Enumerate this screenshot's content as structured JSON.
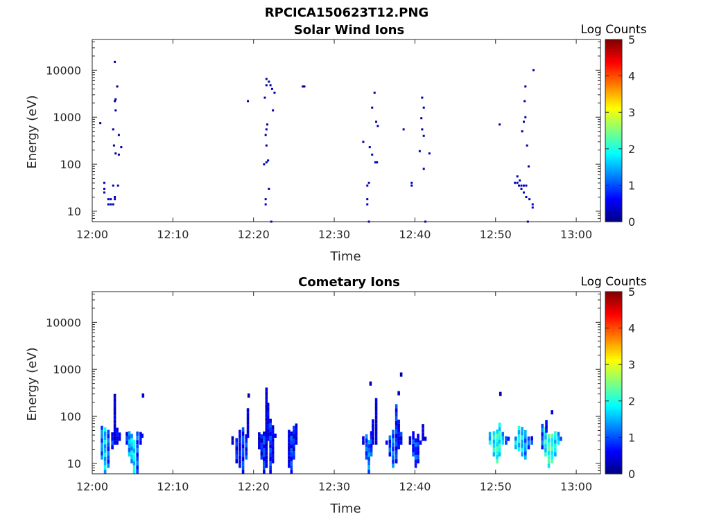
{
  "figure_title": "RPCICA150623T12.PNG",
  "chart_data": [
    {
      "type": "heatmap",
      "title": "Solar Wind Ions",
      "xlabel": "Time",
      "ylabel": "Energy (eV)",
      "x_range_minutes": [
        0,
        63
      ],
      "x_ticks": [
        {
          "minute": 0,
          "label": "12:00"
        },
        {
          "minute": 10,
          "label": "12:10"
        },
        {
          "minute": 20,
          "label": "12:20"
        },
        {
          "minute": 30,
          "label": "12:30"
        },
        {
          "minute": 40,
          "label": "12:40"
        },
        {
          "minute": 50,
          "label": "12:50"
        },
        {
          "minute": 60,
          "label": "13:00"
        }
      ],
      "y_scale": "log",
      "y_range": [
        6,
        45000
      ],
      "y_ticks": [
        {
          "value": 10,
          "label": "10"
        },
        {
          "value": 100,
          "label": "100"
        },
        {
          "value": 1000,
          "label": "1000"
        },
        {
          "value": 10000,
          "label": "10000"
        }
      ],
      "colorbar": {
        "title": "Log Counts",
        "min": 0,
        "max": 5,
        "ticks": [
          "0",
          "1",
          "2",
          "3",
          "4",
          "5"
        ],
        "colormap": "jet"
      },
      "cells": [
        [
          1.0,
          750,
          0.1
        ],
        [
          1.5,
          40,
          0.2
        ],
        [
          1.5,
          30,
          0.2
        ],
        [
          1.5,
          25,
          0.2
        ],
        [
          2.0,
          18,
          0.3
        ],
        [
          2.0,
          14,
          0.3
        ],
        [
          2.3,
          14,
          0.3
        ],
        [
          2.3,
          18,
          0.3
        ],
        [
          2.6,
          35,
          0.3
        ],
        [
          2.6,
          14,
          0.3
        ],
        [
          2.8,
          18,
          0.3
        ],
        [
          2.8,
          20,
          0.3
        ],
        [
          2.6,
          550,
          0.2
        ],
        [
          2.7,
          250,
          0.2
        ],
        [
          2.9,
          170,
          0.2
        ],
        [
          2.8,
          2200,
          0.2
        ],
        [
          2.9,
          2400,
          0.2
        ],
        [
          2.9,
          1400,
          0.2
        ],
        [
          2.8,
          15000,
          0.2
        ],
        [
          3.1,
          4500,
          0.2
        ],
        [
          3.2,
          35,
          0.3
        ],
        [
          3.3,
          420,
          0.2
        ],
        [
          3.3,
          160,
          0.2
        ],
        [
          3.6,
          230,
          0.2
        ],
        [
          19.3,
          2200,
          0.2
        ],
        [
          21.3,
          100,
          0.2
        ],
        [
          21.6,
          110,
          0.2
        ],
        [
          21.8,
          120,
          0.2
        ],
        [
          21.5,
          14,
          0.3
        ],
        [
          21.5,
          18,
          0.3
        ],
        [
          21.9,
          30,
          0.3
        ],
        [
          21.6,
          250,
          0.2
        ],
        [
          21.5,
          420,
          0.2
        ],
        [
          21.6,
          550,
          0.2
        ],
        [
          21.7,
          700,
          0.2
        ],
        [
          21.4,
          2600,
          0.2
        ],
        [
          21.6,
          4800,
          0.2
        ],
        [
          21.6,
          6500,
          0.2
        ],
        [
          21.9,
          5700,
          0.2
        ],
        [
          22.1,
          4800,
          0.2
        ],
        [
          22.3,
          4000,
          0.2
        ],
        [
          22.6,
          3300,
          0.2
        ],
        [
          22.4,
          1400,
          0.2
        ],
        [
          22.2,
          6,
          0.2
        ],
        [
          26.1,
          4500,
          0.2
        ],
        [
          26.3,
          4500,
          0.2
        ],
        [
          33.6,
          300,
          0.2
        ],
        [
          34.1,
          14,
          0.3
        ],
        [
          34.1,
          18,
          0.3
        ],
        [
          34.1,
          35,
          0.3
        ],
        [
          34.3,
          40,
          0.3
        ],
        [
          34.4,
          230,
          0.2
        ],
        [
          34.7,
          160,
          0.2
        ],
        [
          34.7,
          1600,
          0.2
        ],
        [
          35.0,
          3300,
          0.2
        ],
        [
          35.1,
          110,
          0.3
        ],
        [
          35.3,
          110,
          0.3
        ],
        [
          35.2,
          800,
          0.2
        ],
        [
          35.4,
          650,
          0.2
        ],
        [
          34.3,
          6,
          0.2
        ],
        [
          38.6,
          550,
          0.2
        ],
        [
          39.6,
          40,
          0.3
        ],
        [
          39.6,
          35,
          0.3
        ],
        [
          40.6,
          190,
          0.2
        ],
        [
          40.9,
          2600,
          0.2
        ],
        [
          41.1,
          1600,
          0.2
        ],
        [
          40.8,
          950,
          0.2
        ],
        [
          40.9,
          550,
          0.2
        ],
        [
          41.1,
          400,
          0.2
        ],
        [
          41.1,
          80,
          0.2
        ],
        [
          41.8,
          170,
          0.3
        ],
        [
          41.3,
          6,
          0.2
        ],
        [
          50.5,
          700,
          0.2
        ],
        [
          52.4,
          40,
          0.3
        ],
        [
          52.7,
          55,
          0.3
        ],
        [
          52.7,
          40,
          0.3
        ],
        [
          52.9,
          35,
          0.3
        ],
        [
          53.0,
          45,
          0.3
        ],
        [
          53.2,
          30,
          0.3
        ],
        [
          53.2,
          35,
          0.3
        ],
        [
          53.5,
          35,
          0.3
        ],
        [
          53.5,
          25,
          0.3
        ],
        [
          53.8,
          20,
          0.3
        ],
        [
          53.8,
          35,
          0.3
        ],
        [
          54.2,
          18,
          0.3
        ],
        [
          54.6,
          14,
          0.3
        ],
        [
          54.6,
          12,
          0.3
        ],
        [
          53.3,
          500,
          0.2
        ],
        [
          53.5,
          800,
          0.2
        ],
        [
          53.7,
          1000,
          0.2
        ],
        [
          53.6,
          2200,
          0.2
        ],
        [
          53.7,
          4500,
          0.2
        ],
        [
          53.9,
          250,
          0.2
        ],
        [
          54.1,
          90,
          0.2
        ],
        [
          54.7,
          10000,
          0.2
        ],
        [
          54.0,
          6,
          0.2
        ]
      ]
    },
    {
      "type": "heatmap",
      "title": "Cometary Ions",
      "xlabel": "Time",
      "ylabel": "Energy (eV)",
      "x_range_minutes": [
        0,
        63
      ],
      "x_ticks": [
        {
          "minute": 0,
          "label": "12:00"
        },
        {
          "minute": 10,
          "label": "12:10"
        },
        {
          "minute": 20,
          "label": "12:20"
        },
        {
          "minute": 30,
          "label": "12:30"
        },
        {
          "minute": 40,
          "label": "12:40"
        },
        {
          "minute": 50,
          "label": "12:50"
        },
        {
          "minute": 60,
          "label": "13:00"
        }
      ],
      "y_scale": "log",
      "y_range": [
        6,
        45000
      ],
      "y_ticks": [
        {
          "value": 10,
          "label": "10"
        },
        {
          "value": 100,
          "label": "100"
        },
        {
          "value": 1000,
          "label": "1000"
        },
        {
          "value": 10000,
          "label": "10000"
        }
      ],
      "colorbar": {
        "title": "Log Counts",
        "min": 0,
        "max": 5,
        "ticks": [
          "0",
          "1",
          "2",
          "3",
          "4",
          "5"
        ],
        "colormap": "jet"
      },
      "columns": [
        [
          1.2,
          12,
          60,
          1.2
        ],
        [
          1.6,
          6,
          50,
          1.6
        ],
        [
          2.0,
          8,
          45,
          1.0
        ],
        [
          2.5,
          20,
          40,
          0.8
        ],
        [
          2.8,
          25,
          250,
          0.4
        ],
        [
          3.1,
          25,
          50,
          0.6
        ],
        [
          3.4,
          30,
          45,
          0.5
        ],
        [
          4.3,
          25,
          40,
          0.7
        ],
        [
          4.6,
          14,
          40,
          1.4
        ],
        [
          4.9,
          10,
          35,
          1.6
        ],
        [
          5.2,
          6,
          30,
          1.8
        ],
        [
          5.6,
          6,
          40,
          1.0
        ],
        [
          6.0,
          25,
          40,
          0.6
        ],
        [
          6.2,
          35,
          40,
          0.5
        ],
        [
          6.3,
          250,
          260,
          0.3
        ],
        [
          17.4,
          25,
          35,
          0.3
        ],
        [
          17.9,
          10,
          30,
          0.7
        ],
        [
          18.3,
          8,
          45,
          0.6
        ],
        [
          18.7,
          6,
          50,
          0.9
        ],
        [
          19.1,
          12,
          40,
          0.8
        ],
        [
          19.3,
          35,
          140,
          0.4
        ],
        [
          19.4,
          250,
          260,
          0.2
        ],
        [
          20.7,
          20,
          40,
          0.4
        ],
        [
          21.0,
          12,
          40,
          0.7
        ],
        [
          21.3,
          6,
          45,
          0.9
        ],
        [
          21.6,
          8,
          350,
          0.4
        ],
        [
          21.8,
          30,
          180,
          0.6
        ],
        [
          22.1,
          6,
          80,
          0.8
        ],
        [
          22.4,
          10,
          60,
          0.6
        ],
        [
          22.7,
          35,
          40,
          0.4
        ],
        [
          24.4,
          8,
          45,
          0.5
        ],
        [
          24.7,
          6,
          40,
          0.9
        ],
        [
          25.0,
          12,
          60,
          0.7
        ],
        [
          25.3,
          25,
          70,
          0.5
        ],
        [
          33.6,
          25,
          35,
          0.4
        ],
        [
          34.0,
          12,
          35,
          1.0
        ],
        [
          34.3,
          6,
          30,
          1.2
        ],
        [
          34.6,
          14,
          45,
          0.9
        ],
        [
          34.8,
          25,
          80,
          0.5
        ],
        [
          35.2,
          25,
          200,
          0.4
        ],
        [
          34.5,
          450,
          460,
          0.2
        ],
        [
          36.5,
          25,
          30,
          0.5
        ],
        [
          36.9,
          14,
          35,
          0.9
        ],
        [
          37.3,
          8,
          45,
          1.1
        ],
        [
          37.7,
          10,
          150,
          0.8
        ],
        [
          38.0,
          20,
          80,
          0.6
        ],
        [
          38.3,
          25,
          40,
          0.7
        ],
        [
          38.3,
          700,
          710,
          0.2
        ],
        [
          38.0,
          280,
          290,
          0.2
        ],
        [
          39.4,
          25,
          35,
          0.4
        ],
        [
          39.8,
          14,
          40,
          0.8
        ],
        [
          40.1,
          8,
          30,
          0.9
        ],
        [
          40.4,
          10,
          35,
          0.7
        ],
        [
          40.7,
          25,
          30,
          0.5
        ],
        [
          41.0,
          30,
          60,
          0.5
        ],
        [
          41.3,
          30,
          35,
          0.4
        ],
        [
          49.3,
          25,
          40,
          1.6
        ],
        [
          49.8,
          14,
          45,
          1.8
        ],
        [
          50.2,
          10,
          50,
          2.0
        ],
        [
          50.5,
          14,
          60,
          1.9
        ],
        [
          50.9,
          25,
          40,
          1.5
        ],
        [
          51.3,
          25,
          35,
          1.2
        ],
        [
          51.6,
          30,
          35,
          0.8
        ],
        [
          50.6,
          270,
          280,
          0.3
        ],
        [
          52.5,
          20,
          35,
          1.5
        ],
        [
          52.9,
          18,
          60,
          1.8
        ],
        [
          53.3,
          14,
          55,
          1.6
        ],
        [
          53.7,
          12,
          45,
          1.3
        ],
        [
          54.1,
          20,
          35,
          1.0
        ],
        [
          54.5,
          25,
          35,
          0.8
        ],
        [
          55.8,
          20,
          60,
          1.0
        ],
        [
          56.2,
          14,
          50,
          1.8
        ],
        [
          56.6,
          8,
          40,
          2.1
        ],
        [
          57.0,
          10,
          35,
          2.0
        ],
        [
          57.4,
          14,
          40,
          1.8
        ],
        [
          57.8,
          25,
          40,
          1.5
        ],
        [
          58.1,
          30,
          35,
          1.0
        ],
        [
          57.0,
          110,
          120,
          0.3
        ],
        [
          56.3,
          45,
          75,
          0.6
        ]
      ]
    }
  ]
}
